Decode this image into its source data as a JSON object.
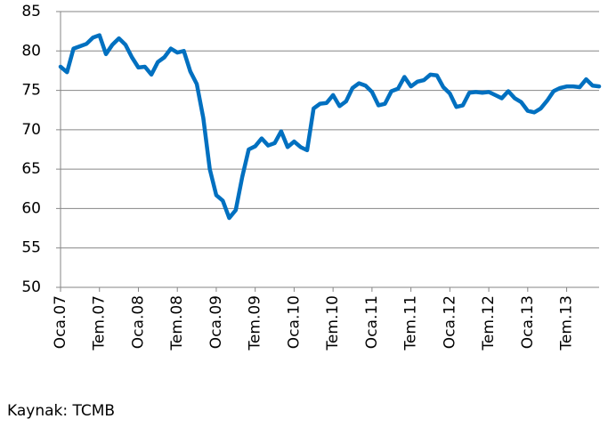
{
  "chart_data": {
    "type": "line",
    "categories": [
      "Oca.07",
      null,
      null,
      null,
      null,
      null,
      "Tem.07",
      null,
      null,
      null,
      null,
      null,
      "Oca.08",
      null,
      null,
      null,
      null,
      null,
      "Tem.08",
      null,
      null,
      null,
      null,
      null,
      "Oca.09",
      null,
      null,
      null,
      null,
      null,
      "Tem.09",
      null,
      null,
      null,
      null,
      null,
      "Oca.10",
      null,
      null,
      null,
      null,
      null,
      "Tem.10",
      null,
      null,
      null,
      null,
      null,
      "Oca.11",
      null,
      null,
      null,
      null,
      null,
      "Tem.11",
      null,
      null,
      null,
      null,
      null,
      "Oca.12",
      null,
      null,
      null,
      null,
      null,
      "Tem.12",
      null,
      null,
      null,
      null,
      null,
      "Oca.13",
      null,
      null,
      null,
      null,
      null,
      "Tem.13",
      null,
      null,
      null,
      null,
      null
    ],
    "values": [
      78,
      77.3,
      80.3,
      80.6,
      80.9,
      81.7,
      82,
      79.6,
      80.8,
      81.6,
      80.8,
      79.2,
      77.9,
      78,
      77,
      78.6,
      79.2,
      80.3,
      79.8,
      80,
      77.4,
      75.8,
      71.5,
      65,
      61.7,
      61,
      58.8,
      59.8,
      64,
      67.5,
      67.9,
      68.9,
      68,
      68.3,
      69.8,
      67.8,
      68.5,
      67.8,
      67.4,
      72.7,
      73.3,
      73.4,
      74.4,
      73,
      73.6,
      75.3,
      75.9,
      75.6,
      74.8,
      73.1,
      73.3,
      74.9,
      75.2,
      76.7,
      75.5,
      76.1,
      76.3,
      77,
      76.9,
      75.4,
      74.6,
      72.9,
      73.1,
      74.7,
      74.8,
      74.7,
      74.8,
      74.4,
      74,
      74.9,
      74,
      73.5,
      72.4,
      72.2,
      72.7,
      73.7,
      74.9,
      75.3,
      75.5,
      75.5,
      75.4,
      76.4,
      75.6,
      75.5
    ],
    "color": "#0070c0",
    "ylim": [
      50,
      85
    ],
    "yticks": [
      50,
      55,
      60,
      65,
      70,
      75,
      80,
      85
    ],
    "grid": true,
    "source": "Kaynak: TCMB"
  }
}
